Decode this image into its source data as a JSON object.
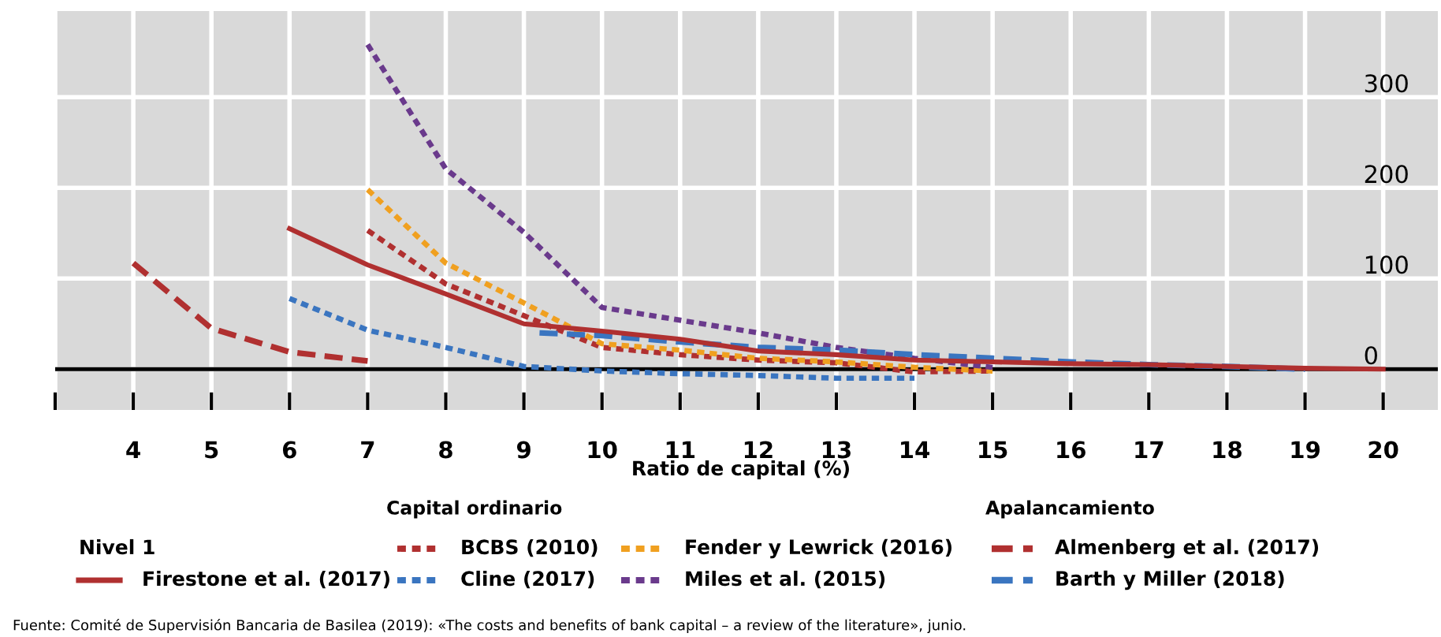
{
  "chart_data": {
    "type": "line",
    "xlabel": "Ratio de capital (%)",
    "xlim": [
      3,
      20.7
    ],
    "xticks": [
      {
        "value": 3,
        "label": null
      },
      4,
      5,
      6,
      7,
      8,
      9,
      10,
      11,
      12,
      13,
      14,
      15,
      16,
      17,
      18,
      19,
      20
    ],
    "ylim": [
      -45,
      395
    ],
    "yticks": [
      0,
      100,
      200,
      300
    ],
    "grid": true,
    "legend": "bottom",
    "ref_lines": [
      {
        "axis": "y",
        "value": 0,
        "color": "#000000",
        "line_style": "solid"
      }
    ],
    "series": [
      {
        "name": "Firestone et al. (2017)",
        "color": "#b03030",
        "line_style": "solid",
        "x": [
          6,
          7,
          8,
          9,
          10,
          11,
          12,
          13,
          14,
          15,
          16,
          17,
          18,
          19,
          20
        ],
        "values": [
          155,
          115,
          83,
          50,
          42,
          33,
          20,
          16,
          10,
          8,
          6,
          5,
          3,
          1,
          0
        ]
      },
      {
        "name": "BCBS (2010)",
        "color": "#b03030",
        "line_style": "dotted",
        "x": [
          7,
          8,
          9,
          10,
          11,
          12,
          13,
          14,
          15
        ],
        "values": [
          153,
          94,
          59,
          24,
          16,
          10,
          7,
          -3,
          -2
        ]
      },
      {
        "name": "Cline (2017)",
        "color": "#3a75c0",
        "line_style": "dotted",
        "x": [
          6,
          7,
          8,
          9,
          10,
          11,
          12,
          13,
          14
        ],
        "values": [
          78,
          43,
          24,
          3,
          -2,
          -5,
          -7,
          -10,
          -10
        ]
      },
      {
        "name": "Fender y Lewrick (2016)",
        "color": "#f0a020",
        "line_style": "dotted",
        "x": [
          7,
          8,
          9,
          10,
          11,
          12,
          13,
          14,
          15
        ],
        "values": [
          198,
          117,
          73,
          28,
          21,
          12,
          8,
          2,
          -2
        ]
      },
      {
        "name": "Miles et al. (2015)",
        "color": "#6a3a8c",
        "line_style": "dotted",
        "x": [
          7,
          8,
          9,
          10,
          11,
          12,
          13,
          14,
          15
        ],
        "values": [
          358,
          221,
          151,
          68,
          54,
          40,
          24,
          12,
          2
        ]
      },
      {
        "name": "Almenberg et al. (2017)",
        "color": "#b03030",
        "line_style": "dashed",
        "x": [
          4,
          5,
          6,
          7
        ],
        "values": [
          117,
          45,
          19,
          9
        ]
      },
      {
        "name": "Barth y Miller (2018)",
        "color": "#3a75c0",
        "line_style": "dashed",
        "x": [
          9.2,
          10,
          11,
          12,
          13,
          14,
          15,
          16,
          17,
          18,
          19
        ],
        "values": [
          40,
          37,
          30,
          24,
          21,
          16,
          12,
          8,
          5,
          3,
          0
        ]
      }
    ],
    "annotations": [
      "Nivel 1",
      "Capital ordinario",
      "Apalancamiento",
      "Fuente: Comité de Supervisión Bancaria de Basilea (2019): «The costs and benefits of bank capital – a review of the literature», junio."
    ]
  }
}
